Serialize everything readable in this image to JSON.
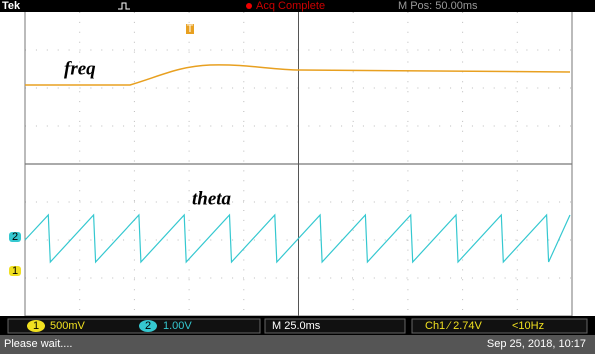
{
  "header": {
    "brand": "Tek",
    "status": "Acq Complete",
    "position": "M Pos: 50.00ms"
  },
  "markers": {
    "trigger": "T",
    "ch1": "1",
    "ch2": "2"
  },
  "traces": {
    "freq": "freq",
    "theta": "theta"
  },
  "footer": {
    "ch1": "1",
    "ch1_scale": "500mV",
    "ch2": "2",
    "ch2_scale": "1.00V",
    "timebase": "M 25.0ms",
    "trigger": "Ch1 ∕ 2.74V",
    "trigger_freq": "<10Hz",
    "message": "Please wait....",
    "datetime": "Sep 25, 2018, 10:17"
  }
}
